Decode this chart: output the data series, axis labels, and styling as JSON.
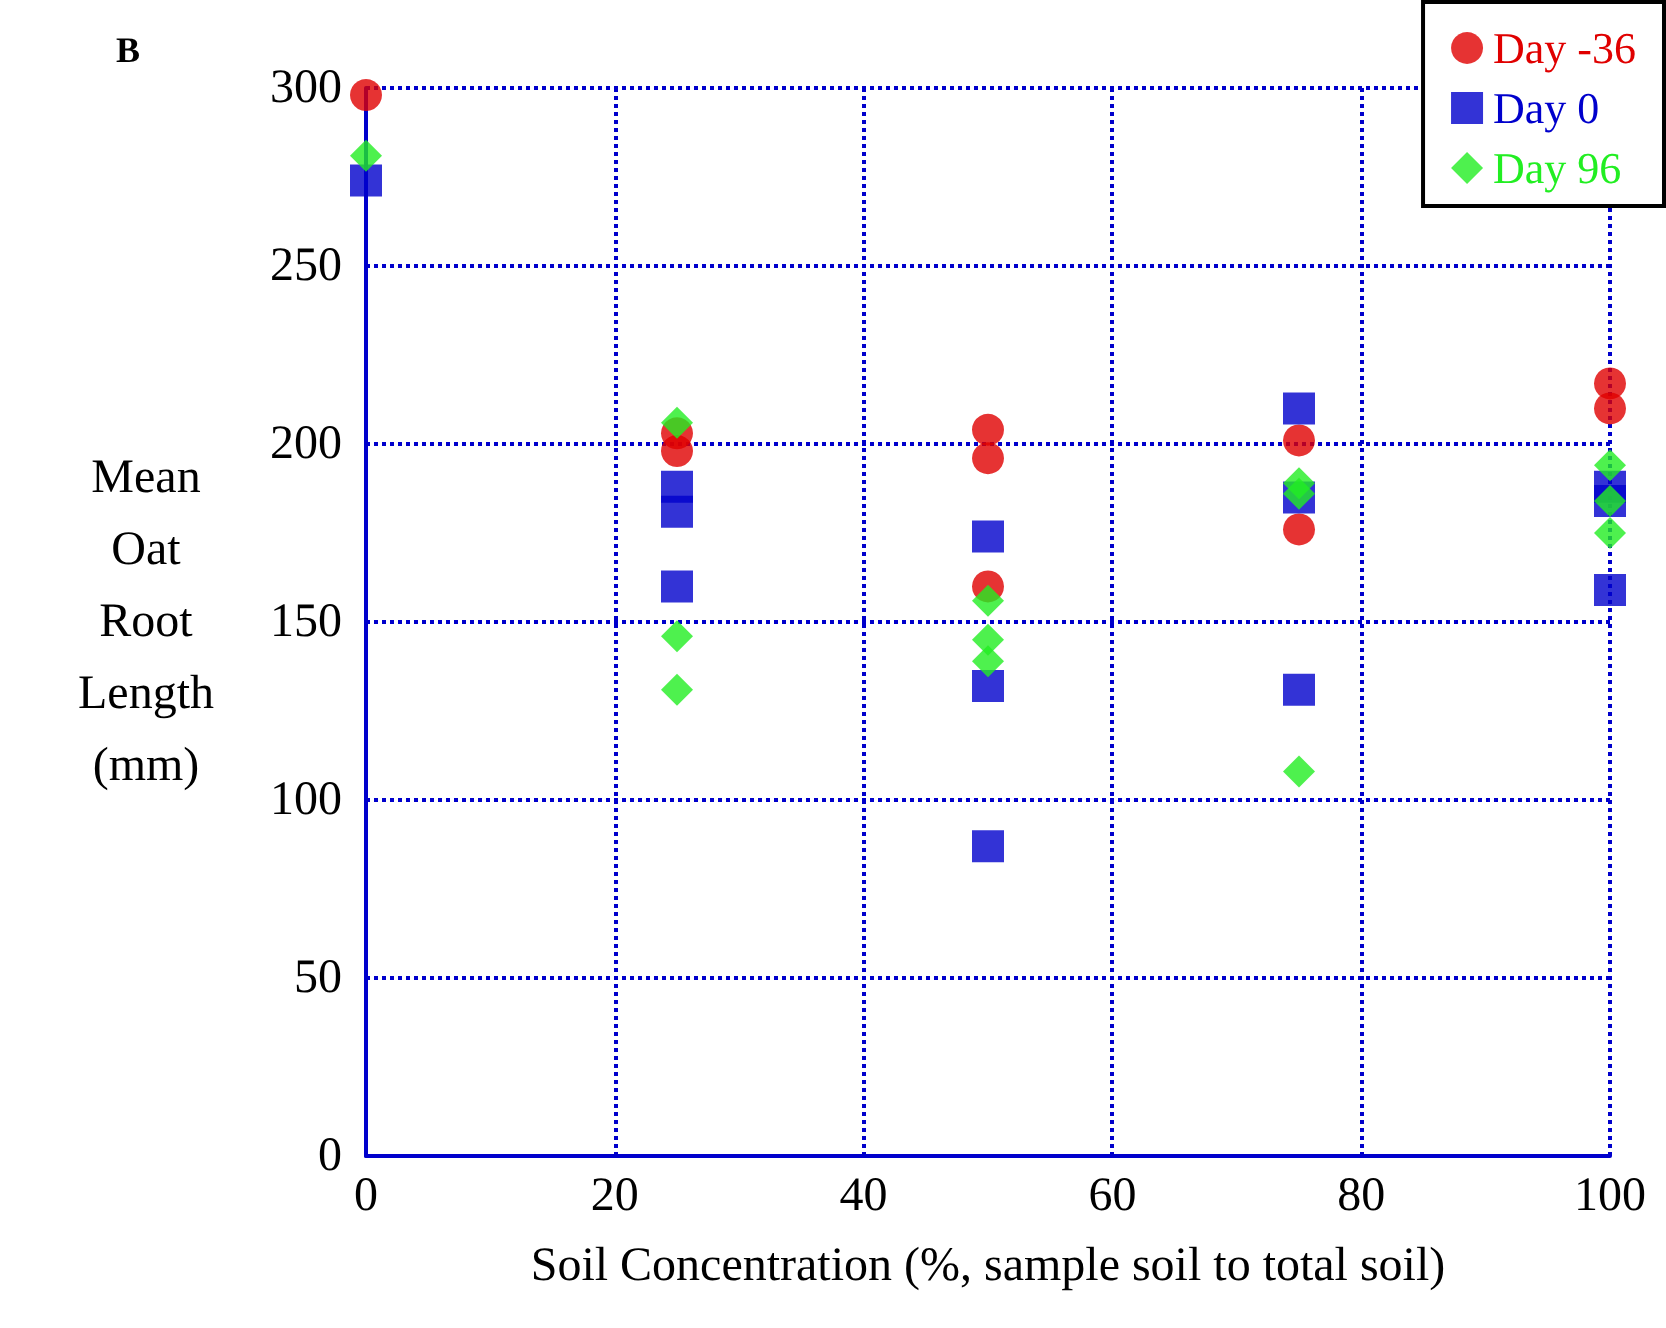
{
  "chart_data": {
    "type": "scatter",
    "xlabel": "Soil Concentration (%, sample soil to total soil)",
    "ylabel": "Mean Oat Root Length (mm)",
    "annotations": [
      "B"
    ],
    "xlim": [
      0,
      100
    ],
    "xticks": [
      0,
      20,
      40,
      60,
      80,
      100
    ],
    "ylim": [
      0,
      300
    ],
    "yticks": [
      0,
      50,
      100,
      150,
      200,
      250,
      300
    ],
    "grid": true,
    "legend": "top right",
    "series": [
      {
        "name": "Day -36",
        "color": "#e00000",
        "marker": "circle",
        "x": [
          0,
          25,
          25,
          50,
          50,
          50,
          75,
          75,
          100,
          100
        ],
        "values": [
          298,
          198,
          203,
          204,
          196,
          160,
          201,
          176,
          217,
          210
        ]
      },
      {
        "name": "Day 0",
        "color": "#0000cc",
        "marker": "square",
        "x": [
          0,
          25,
          25,
          25,
          50,
          50,
          50,
          75,
          75,
          75,
          100,
          100,
          100
        ],
        "values": [
          274,
          188,
          181,
          160,
          174,
          132,
          87,
          210,
          185,
          131,
          188,
          184,
          159
        ]
      },
      {
        "name": "Day 96",
        "color": "#22ee22",
        "marker": "diamond",
        "x": [
          0,
          25,
          25,
          25,
          50,
          50,
          50,
          75,
          75,
          75,
          100,
          100,
          100
        ],
        "values": [
          281,
          206,
          146,
          131,
          156,
          145,
          139,
          189,
          186,
          108,
          194,
          184,
          175
        ]
      }
    ]
  }
}
